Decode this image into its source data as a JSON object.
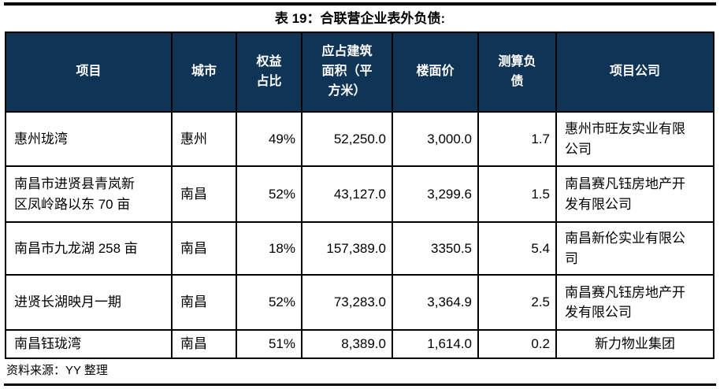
{
  "page": {
    "title": "表 19：合联营企业表外负债:",
    "source_note": "资料来源：YY 整理"
  },
  "colors": {
    "header_bg": "#0F3456",
    "header_text": "#FFFFFF",
    "border": "#000000",
    "rule": "#000000"
  },
  "table": {
    "columns": [
      {
        "key": "project",
        "label": "项目"
      },
      {
        "key": "city",
        "label": "城市"
      },
      {
        "key": "equity_ratio",
        "label": "权益占比"
      },
      {
        "key": "gfa",
        "label": "应占建筑面积（平方米）"
      },
      {
        "key": "floor_price",
        "label": "楼面价"
      },
      {
        "key": "estimated_debt",
        "label": "测算负债"
      },
      {
        "key": "project_company",
        "label": "项目公司"
      }
    ],
    "rows": [
      {
        "project": "惠州珑湾",
        "city": "惠州",
        "equity_ratio": "49%",
        "gfa": "52,250.0",
        "floor_price": "3,000.0",
        "estimated_debt": "1.7",
        "project_company": "惠州市旺友实业有限公司"
      },
      {
        "project": "南昌市进贤县青岚新区凤岭路以东 70 亩",
        "city": "南昌",
        "equity_ratio": "52%",
        "gfa": "43,127.0",
        "floor_price": "3,299.6",
        "estimated_debt": "1.5",
        "project_company": "南昌赛凡钰房地产开发有限公司"
      },
      {
        "project": "南昌市九龙湖 258 亩",
        "city": "南昌",
        "equity_ratio": "18%",
        "gfa": "157,389.0",
        "floor_price": "3350.5",
        "estimated_debt": "5.4",
        "project_company": "南昌新伦实业有限公司"
      },
      {
        "project": "进贤长湖映月一期",
        "city": "南昌",
        "equity_ratio": "52%",
        "gfa": "73,283.0",
        "floor_price": "3,364.9",
        "estimated_debt": "2.5",
        "project_company": "南昌赛凡钰房地产开发有限公司"
      },
      {
        "project": "南昌钰珑湾",
        "city": "南昌",
        "equity_ratio": "51%",
        "gfa": "8,389.0",
        "floor_price": "1,614.0",
        "estimated_debt": "0.2",
        "project_company": "新力物业集团"
      }
    ]
  }
}
